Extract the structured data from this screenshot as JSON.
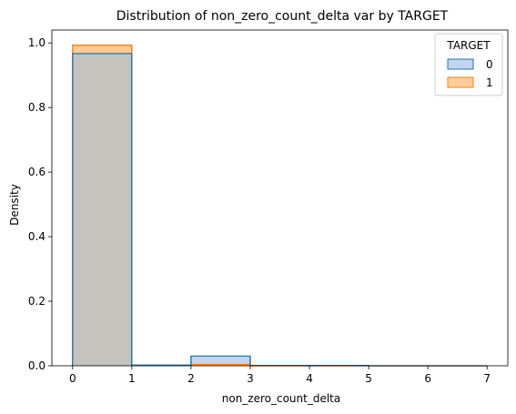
{
  "chart_data": {
    "type": "histogram",
    "title": "Distribution of non_zero_count_delta var by TARGET",
    "xlabel": "non_zero_count_delta",
    "ylabel": "Density",
    "xlim": [
      -0.35,
      7.35
    ],
    "ylim": [
      0,
      1.04
    ],
    "xticks": [
      0,
      1,
      2,
      3,
      4,
      5,
      6,
      7
    ],
    "yticks": [
      0.0,
      0.2,
      0.4,
      0.6,
      0.8,
      1.0
    ],
    "ytick_labels": [
      "0.0",
      "0.2",
      "0.4",
      "0.6",
      "0.8",
      "1.0"
    ],
    "grid": false,
    "legend_title": "TARGET",
    "legend_position": "top-right",
    "bins": [
      0,
      1,
      2,
      3,
      4,
      5,
      6,
      7
    ],
    "series": [
      {
        "name": "0",
        "values": [
          0.967,
          0.002,
          0.03,
          0.001,
          0.001,
          0.0,
          0.0
        ],
        "edge_color": "#1f77b4",
        "fill_color": "#aec7e8"
      },
      {
        "name": "1",
        "values": [
          0.993,
          0.002,
          0.004,
          0.0,
          0.0,
          0.0,
          0.0
        ],
        "edge_color": "#ff7f0e",
        "fill_color": "#ffbb78"
      }
    ],
    "overlap_color": "#c4c3bd"
  }
}
